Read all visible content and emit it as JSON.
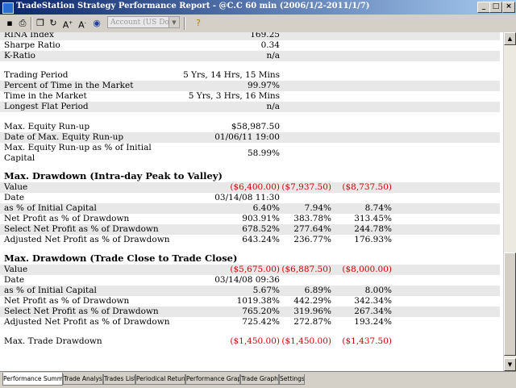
{
  "window": {
    "title": "TradeStation Strategy Performance Report - @C.C 60 min (2006/1/2-2011/1/7)"
  },
  "toolbar": {
    "account_placeholder": "Account (US Dollar)"
  },
  "sections": {
    "top": [
      {
        "label": "RINA Index",
        "v1": "169.25",
        "shade": true
      },
      {
        "label": "Sharpe Ratio",
        "v1": "0.34",
        "shade": false
      },
      {
        "label": "K-Ratio",
        "v1": "n/a",
        "shade": true
      }
    ],
    "period": [
      {
        "label": "Trading Period",
        "v1": "5 Yrs, 14 Hrs, 15 Mins",
        "shade": false
      },
      {
        "label": "Percent of Time in the Market",
        "v1": "99.97%",
        "shade": true
      },
      {
        "label": "Time in the Market",
        "v1": "5 Yrs, 3 Hrs, 16 Mins",
        "shade": false
      },
      {
        "label": "Longest Flat Period",
        "v1": "n/a",
        "shade": true
      }
    ],
    "runup": [
      {
        "label": "Max. Equity Run-up",
        "v1": "$58,987.50",
        "shade": false
      },
      {
        "label": "Date of Max. Equity Run-up",
        "v1": "01/06/11 19:00",
        "shade": true
      }
    ],
    "runup_pct": {
      "label1": "Max. Equity Run-up as % of Initial",
      "label2": "Capital",
      "v1": "58.99%"
    },
    "dd1": {
      "heading": "Max. Drawdown (Intra-day Peak to Valley)",
      "rows": [
        {
          "label": "Value",
          "v1": "($6,400.00)",
          "v2": "($7,937.50)",
          "v3": "($8,737.50)",
          "neg": true,
          "shade": true
        },
        {
          "label": "Date",
          "v1": "03/14/08 11:30",
          "v2": "",
          "v3": "",
          "neg": false,
          "shade": false
        },
        {
          "label": "as % of Initial Capital",
          "v1": "6.40%",
          "v2": "7.94%",
          "v3": "8.74%",
          "neg": false,
          "shade": true
        },
        {
          "label": "Net Profit as % of Drawdown",
          "v1": "903.91%",
          "v2": "383.78%",
          "v3": "313.45%",
          "neg": false,
          "shade": false
        },
        {
          "label": "Select Net Profit as % of Drawdown",
          "v1": "678.52%",
          "v2": "277.64%",
          "v3": "244.78%",
          "neg": false,
          "shade": true
        },
        {
          "label": "Adjusted Net Profit as % of Drawdown",
          "v1": "643.24%",
          "v2": "236.77%",
          "v3": "176.93%",
          "neg": false,
          "shade": false
        }
      ]
    },
    "dd2": {
      "heading": "Max. Drawdown (Trade Close to Trade Close)",
      "rows": [
        {
          "label": "Value",
          "v1": "($5,675.00)",
          "v2": "($6,887.50)",
          "v3": "($8,000.00)",
          "neg": true,
          "shade": true
        },
        {
          "label": "Date",
          "v1": "03/14/08 09:36",
          "v2": "",
          "v3": "",
          "neg": false,
          "shade": false
        },
        {
          "label": "as % of Initial Capital",
          "v1": "5.67%",
          "v2": "6.89%",
          "v3": "8.00%",
          "neg": false,
          "shade": true
        },
        {
          "label": "Net Profit as % of Drawdown",
          "v1": "1019.38%",
          "v2": "442.29%",
          "v3": "342.34%",
          "neg": false,
          "shade": false
        },
        {
          "label": "Select Net Profit as % of Drawdown",
          "v1": "765.20%",
          "v2": "319.96%",
          "v3": "267.34%",
          "neg": false,
          "shade": true
        },
        {
          "label": "Adjusted Net Profit as % of Drawdown",
          "v1": "725.42%",
          "v2": "272.87%",
          "v3": "193.24%",
          "neg": false,
          "shade": false
        }
      ]
    },
    "trade_dd": {
      "label": "Max. Trade Drawdown",
      "v1": "($1,450.00)",
      "v2": "($1,450.00)",
      "v3": "($1,437.50)"
    }
  },
  "tabs": [
    "Performance Summary",
    "Trade Analysis",
    "Trades List",
    "Periodical Returns",
    "Performance Graphs",
    "Trade Graphs",
    "Settings"
  ],
  "colors": {
    "negative": "#cc0000",
    "shade": "#e8e8e8",
    "active_title": "#0a246a"
  }
}
